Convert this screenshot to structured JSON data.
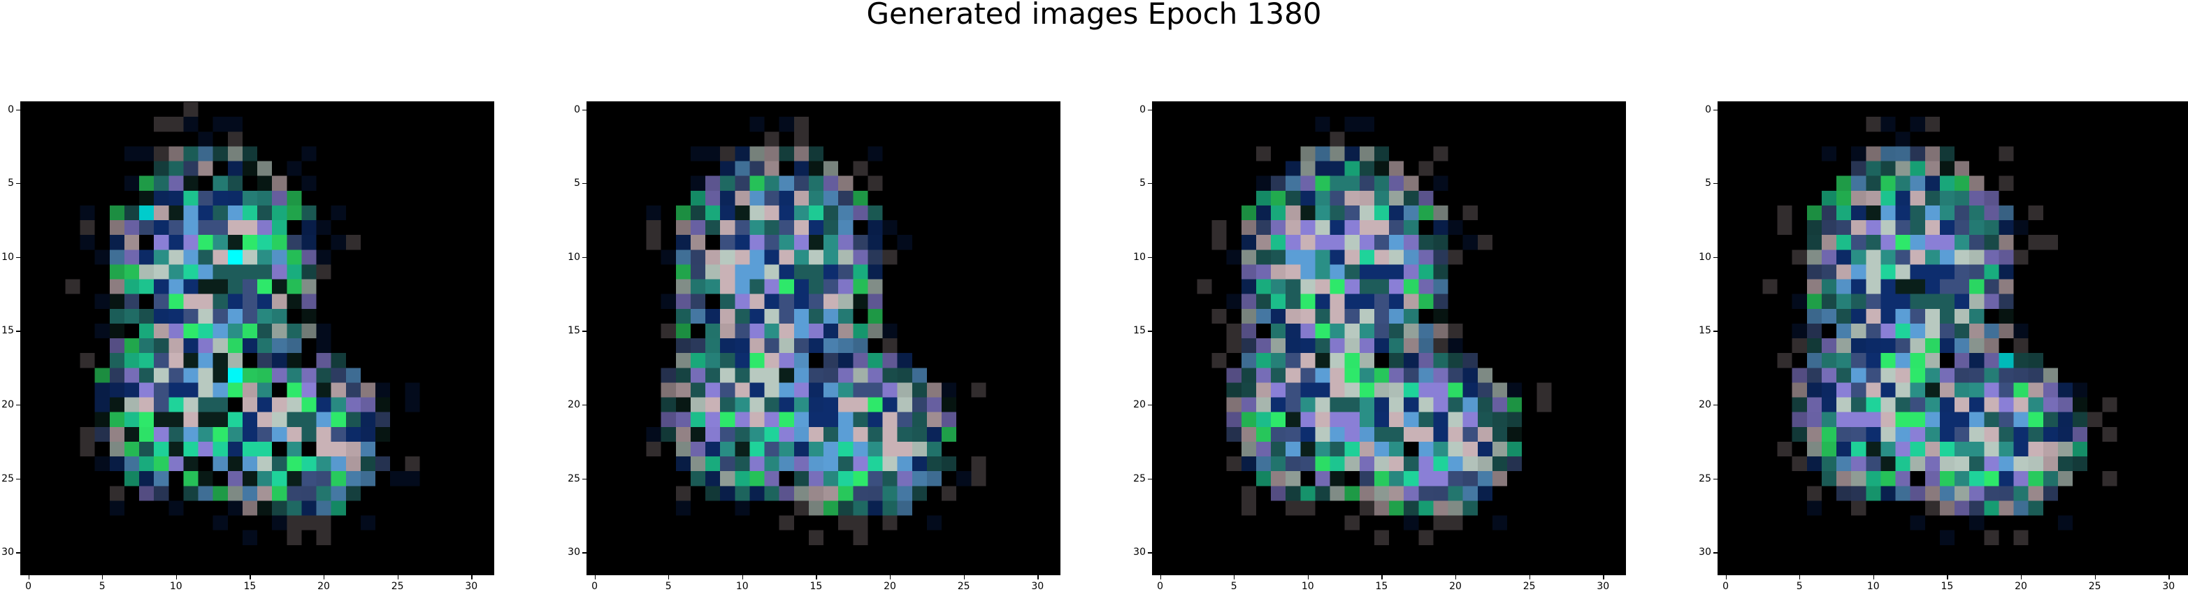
{
  "title": "Generated images Epoch 1380",
  "panels": [
    {
      "id": "sample-1",
      "variant": 0
    },
    {
      "id": "sample-2",
      "variant": 1
    },
    {
      "id": "sample-3",
      "variant": 2
    },
    {
      "id": "sample-4",
      "variant": 3
    }
  ],
  "axis": {
    "x_ticks": [
      "0",
      "5",
      "10",
      "15",
      "20",
      "25",
      "30"
    ],
    "y_ticks": [
      "0",
      "5",
      "10",
      "15",
      "20",
      "25",
      "30"
    ],
    "range": [
      0,
      31
    ]
  },
  "colors": {
    "background": "#000000",
    "palette": [
      "#00ffff",
      "#1fd39a",
      "#2a8f86",
      "#5b9ed6",
      "#b8c9c0",
      "#c9b2b6",
      "#0d2d6e",
      "#1e5c5a",
      "#3b4f7f",
      "#8a7fd6",
      "#2ee86a",
      "#0a1f1a"
    ]
  }
}
